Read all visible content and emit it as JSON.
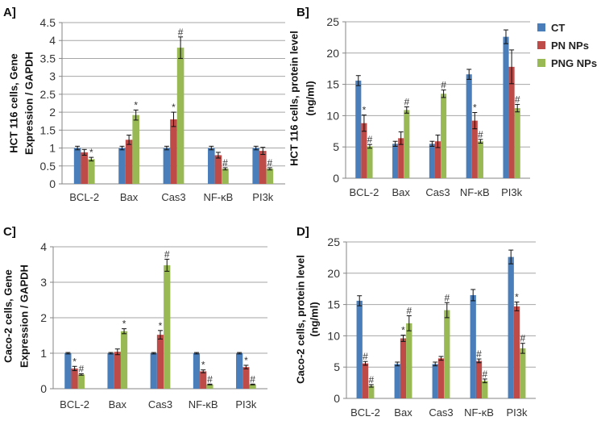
{
  "series_names": [
    "CT",
    "PN NPs",
    "PNG NPs"
  ],
  "colors": {
    "CT": "#4a7ebb",
    "PN NPs": "#be4b48",
    "PNG NPs": "#98b954",
    "grid": "#a6a6a6",
    "axis": "#868686"
  },
  "chart_data": [
    {
      "type": "bar",
      "panel": "A]",
      "ylabel": [
        "HCT 116 cells, Gene",
        "Expression / GAPDH"
      ],
      "categories": [
        "BCL-2",
        "Bax",
        "Cas3",
        "NF-κB",
        "PI3k"
      ],
      "ylim": [
        0,
        4.5
      ],
      "yticks": [
        "0",
        "0.5",
        "1",
        "1.5",
        "2",
        "2.5",
        "3",
        "3.5",
        "4",
        "4.5"
      ],
      "ystep": 0.5,
      "grid": true,
      "series": [
        {
          "name": "CT",
          "values": [
            1,
            1,
            1,
            1,
            1
          ],
          "errors": [
            0.05,
            0.05,
            0.05,
            0.05,
            0.05
          ],
          "annotations": [
            "",
            "",
            "",
            "",
            ""
          ]
        },
        {
          "name": "PN NPs",
          "values": [
            0.88,
            1.23,
            1.8,
            0.8,
            0.92
          ],
          "errors": [
            0.08,
            0.13,
            0.2,
            0.08,
            0.1
          ],
          "annotations": [
            "",
            "",
            "*",
            "",
            ""
          ]
        },
        {
          "name": "PNG NPs",
          "values": [
            0.69,
            1.92,
            3.8,
            0.42,
            0.42
          ],
          "errors": [
            0.05,
            0.14,
            0.3,
            0.03,
            0.03
          ],
          "annotations": [
            "*",
            "*",
            "#",
            "#",
            "#"
          ]
        }
      ]
    },
    {
      "type": "bar",
      "panel": "B]",
      "ylabel": [
        "HCT 116 cells, protein level",
        "(ng/ml)"
      ],
      "categories": [
        "BCL-2",
        "Bax",
        "Cas3",
        "NF-κB",
        "PI3k"
      ],
      "ylim": [
        0,
        25
      ],
      "yticks": [
        "0",
        "5",
        "10",
        "15",
        "20",
        "25"
      ],
      "ystep": 5,
      "grid": true,
      "legend": "right",
      "series": [
        {
          "name": "CT",
          "values": [
            15.6,
            5.5,
            5.5,
            16.6,
            22.6
          ],
          "errors": [
            0.8,
            0.4,
            0.4,
            0.8,
            1.1
          ],
          "annotations": [
            "",
            "",
            "",
            "",
            ""
          ]
        },
        {
          "name": "PN NPs",
          "values": [
            8.8,
            6.4,
            5.9,
            9.2,
            17.8
          ],
          "errors": [
            1.3,
            1.0,
            1.0,
            1.3,
            2.7
          ],
          "annotations": [
            "*",
            "",
            "",
            "*",
            ""
          ]
        },
        {
          "name": "PNG NPs",
          "values": [
            5.1,
            10.9,
            13.5,
            5.9,
            11.2
          ],
          "errors": [
            0.3,
            0.5,
            0.6,
            0.3,
            0.6
          ],
          "annotations": [
            "#",
            "#",
            "#",
            "#",
            "#"
          ]
        }
      ]
    },
    {
      "type": "bar",
      "panel": "C]",
      "ylabel": [
        "Caco-2 cells, Gene",
        "Expression / GAPDH"
      ],
      "categories": [
        "BCL-2",
        "Bax",
        "Cas3",
        "NF-κB",
        "PI3k"
      ],
      "ylim": [
        0,
        4
      ],
      "yticks": [
        "0",
        "1",
        "2",
        "3",
        "4"
      ],
      "ystep": 1,
      "grid": true,
      "series": [
        {
          "name": "CT",
          "values": [
            1,
            1,
            1,
            1,
            1
          ],
          "errors": [
            0.02,
            0.02,
            0.02,
            0.02,
            0.02
          ],
          "annotations": [
            "",
            "",
            "",
            "",
            ""
          ]
        },
        {
          "name": "PN NPs",
          "values": [
            0.57,
            1.04,
            1.52,
            0.49,
            0.61
          ],
          "errors": [
            0.06,
            0.08,
            0.12,
            0.04,
            0.05
          ],
          "annotations": [
            "*",
            "",
            "*",
            "*",
            "*"
          ]
        },
        {
          "name": "PNG NPs",
          "values": [
            0.4,
            1.62,
            3.48,
            0.12,
            0.12
          ],
          "errors": [
            0.02,
            0.07,
            0.17,
            0.01,
            0.01
          ],
          "annotations": [
            "#",
            "*",
            "#",
            "#",
            "#"
          ]
        }
      ]
    },
    {
      "type": "bar",
      "panel": "D]",
      "ylabel": [
        "Caco-2 cells, protein level",
        "(ng/ml)"
      ],
      "categories": [
        "BCL-2",
        "Bax",
        "Cas3",
        "NF-κB",
        "PI3k"
      ],
      "ylim": [
        0,
        25
      ],
      "yticks": [
        "0",
        "5",
        "10",
        "15",
        "20",
        "25"
      ],
      "ystep": 5,
      "grid": true,
      "series": [
        {
          "name": "CT",
          "values": [
            15.6,
            5.5,
            5.5,
            16.5,
            22.6
          ],
          "errors": [
            0.8,
            0.3,
            0.3,
            0.9,
            1.1
          ],
          "annotations": [
            "",
            "",
            "",
            "",
            ""
          ]
        },
        {
          "name": "PN NPs",
          "values": [
            5.6,
            9.6,
            6.4,
            6.0,
            14.7
          ],
          "errors": [
            0.3,
            0.5,
            0.3,
            0.3,
            0.7
          ],
          "annotations": [
            "#",
            "*",
            "",
            "#",
            "*"
          ]
        },
        {
          "name": "PNG NPs",
          "values": [
            2.0,
            12.0,
            14.1,
            2.8,
            8.0
          ],
          "errors": [
            0.2,
            1.2,
            1.2,
            0.3,
            0.8
          ],
          "annotations": [
            "#",
            "#",
            "#",
            "#",
            "#"
          ]
        }
      ]
    }
  ]
}
